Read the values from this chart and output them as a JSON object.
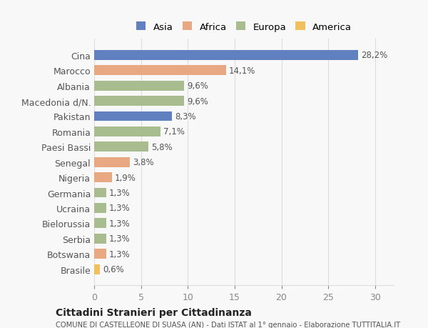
{
  "countries": [
    "Cina",
    "Marocco",
    "Albania",
    "Macedonia d/N.",
    "Pakistan",
    "Romania",
    "Paesi Bassi",
    "Senegal",
    "Nigeria",
    "Germania",
    "Ucraina",
    "Bielorussia",
    "Serbia",
    "Botswana",
    "Brasile"
  ],
  "values": [
    28.2,
    14.1,
    9.6,
    9.6,
    8.3,
    7.1,
    5.8,
    3.8,
    1.9,
    1.3,
    1.3,
    1.3,
    1.3,
    1.3,
    0.6
  ],
  "labels": [
    "28,2%",
    "14,1%",
    "9,6%",
    "9,6%",
    "8,3%",
    "7,1%",
    "5,8%",
    "3,8%",
    "1,9%",
    "1,3%",
    "1,3%",
    "1,3%",
    "1,3%",
    "1,3%",
    "0,6%"
  ],
  "continents": [
    "Asia",
    "Africa",
    "Europa",
    "Europa",
    "Asia",
    "Europa",
    "Europa",
    "Africa",
    "Africa",
    "Europa",
    "Europa",
    "Europa",
    "Europa",
    "Africa",
    "America"
  ],
  "colors": {
    "Asia": "#6080c0",
    "Africa": "#e8a882",
    "Europa": "#a8bc90",
    "America": "#f0c060"
  },
  "legend_order": [
    "Asia",
    "Africa",
    "Europa",
    "America"
  ],
  "xlim": [
    0,
    32
  ],
  "xticks": [
    0,
    5,
    10,
    15,
    20,
    25,
    30
  ],
  "title": "Cittadini Stranieri per Cittadinanza",
  "subtitle": "COMUNE DI CASTELLEONE DI SUASA (AN) - Dati ISTAT al 1° gennaio - Elaborazione TUTTITALIA.IT",
  "background_color": "#f8f8f8",
  "grid_color": "#dddddd"
}
